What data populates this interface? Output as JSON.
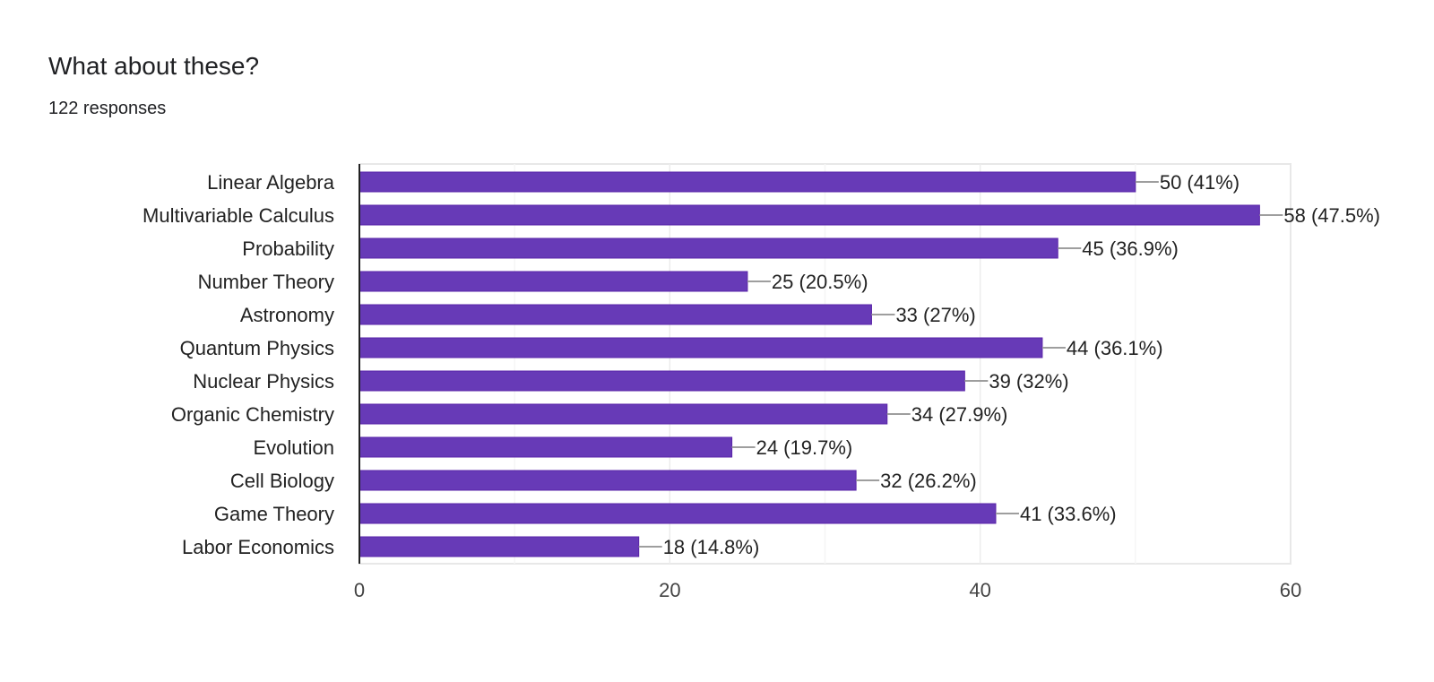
{
  "header": {
    "title": "What about these?",
    "subtitle": "122 responses"
  },
  "chart_data": {
    "type": "bar",
    "orientation": "horizontal",
    "categories": [
      "Linear Algebra",
      "Multivariable Calculus",
      "Probability",
      "Number Theory",
      "Astronomy",
      "Quantum Physics",
      "Nuclear Physics",
      "Organic Chemistry",
      "Evolution",
      "Cell Biology",
      "Game Theory",
      "Labor Economics"
    ],
    "values": [
      50,
      58,
      45,
      25,
      33,
      44,
      39,
      34,
      24,
      32,
      41,
      18
    ],
    "data_labels": [
      "50 (41%)",
      "58 (47.5%)",
      "45 (36.9%)",
      "25 (20.5%)",
      "33 (27%)",
      "44 (36.1%)",
      "39 (32%)",
      "34 (27.9%)",
      "24 (19.7%)",
      "32 (26.2%)",
      "41 (33.6%)",
      "18 (14.8%)"
    ],
    "xlim": [
      0,
      60
    ],
    "xticks": [
      "0",
      "20",
      "40",
      "60"
    ],
    "grid": true,
    "bar_color": "#673ab7",
    "title": "What about these?",
    "xlabel": "",
    "ylabel": ""
  }
}
